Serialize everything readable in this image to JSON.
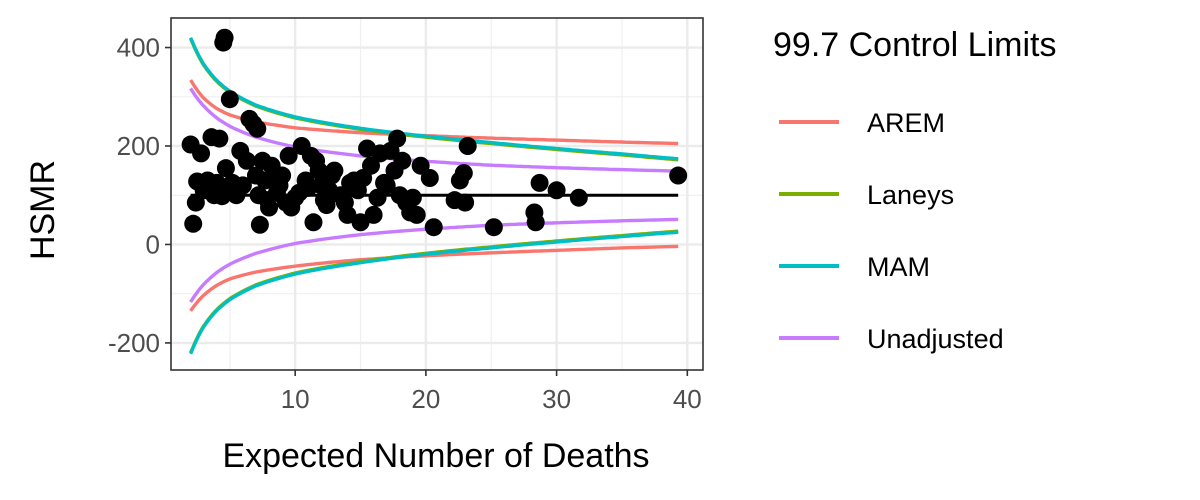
{
  "chart_data": {
    "type": "scatter",
    "title": "",
    "xlabel": "Expected Number of Deaths",
    "ylabel": "HSMR",
    "xlim": [
      0.5,
      41.2
    ],
    "ylim": [
      -255,
      460
    ],
    "x_ticks": [
      10,
      20,
      30,
      40
    ],
    "y_ticks": [
      -200,
      0,
      200,
      400
    ],
    "x_tick_labels": [
      "10",
      "20",
      "30",
      "40"
    ],
    "y_tick_labels": [
      "-200",
      "0",
      "200",
      "400"
    ],
    "grid": true,
    "legend_position": "right",
    "legend_title": "99.7 Control Limits",
    "target_line": {
      "y": 100,
      "x_range": [
        2,
        39.3
      ]
    },
    "limit_curves": [
      {
        "name": "AREM",
        "color": "#F8766D",
        "upper": [
          [
            2,
            334
          ],
          [
            3,
            297
          ],
          [
            4,
            276
          ],
          [
            5,
            263
          ],
          [
            7,
            249
          ],
          [
            10,
            237
          ],
          [
            15,
            227
          ],
          [
            20,
            221
          ],
          [
            25,
            216
          ],
          [
            30,
            212
          ],
          [
            35,
            208
          ],
          [
            39.3,
            205
          ]
        ],
        "lower": [
          [
            2,
            -135
          ],
          [
            3,
            -103
          ],
          [
            4,
            -83
          ],
          [
            5,
            -70
          ],
          [
            7,
            -56
          ],
          [
            10,
            -44
          ],
          [
            15,
            -31
          ],
          [
            20,
            -23
          ],
          [
            25,
            -17
          ],
          [
            30,
            -12
          ],
          [
            35,
            -7
          ],
          [
            39.3,
            -4
          ]
        ]
      },
      {
        "name": "Laneys",
        "color": "#7CAE00",
        "upper": [
          [
            2,
            418
          ],
          [
            3,
            364
          ],
          [
            4,
            331
          ],
          [
            5,
            309
          ],
          [
            7,
            281
          ],
          [
            10,
            257
          ],
          [
            15,
            234
          ],
          [
            20,
            218
          ],
          [
            25,
            205
          ],
          [
            30,
            193
          ],
          [
            35,
            182
          ],
          [
            39.3,
            172
          ]
        ],
        "lower": [
          [
            2,
            -220
          ],
          [
            3,
            -165
          ],
          [
            4,
            -132
          ],
          [
            5,
            -110
          ],
          [
            7,
            -82
          ],
          [
            10,
            -58
          ],
          [
            15,
            -35
          ],
          [
            20,
            -18
          ],
          [
            25,
            -5
          ],
          [
            30,
            7
          ],
          [
            35,
            18
          ],
          [
            39.3,
            27
          ]
        ]
      },
      {
        "name": "MAM",
        "color": "#00BFC4",
        "upper": [
          [
            2,
            420
          ],
          [
            3,
            366
          ],
          [
            4,
            333
          ],
          [
            5,
            311
          ],
          [
            7,
            283
          ],
          [
            10,
            259
          ],
          [
            15,
            236
          ],
          [
            20,
            220
          ],
          [
            25,
            207
          ],
          [
            30,
            195
          ],
          [
            35,
            184
          ],
          [
            39.3,
            174
          ]
        ],
        "lower": [
          [
            2,
            -222
          ],
          [
            3,
            -167
          ],
          [
            4,
            -134
          ],
          [
            5,
            -112
          ],
          [
            7,
            -84
          ],
          [
            10,
            -60
          ],
          [
            15,
            -37
          ],
          [
            20,
            -20
          ],
          [
            25,
            -7
          ],
          [
            30,
            5
          ],
          [
            35,
            16
          ],
          [
            39.3,
            25
          ]
        ]
      },
      {
        "name": "Unadjusted",
        "color": "#C77CFF",
        "upper": [
          [
            2,
            317
          ],
          [
            3,
            281
          ],
          [
            4,
            257
          ],
          [
            5,
            240
          ],
          [
            7,
            218
          ],
          [
            10,
            198
          ],
          [
            15,
            180
          ],
          [
            20,
            169
          ],
          [
            25,
            161
          ],
          [
            30,
            156
          ],
          [
            35,
            152
          ],
          [
            39.3,
            149
          ]
        ],
        "lower": [
          [
            2,
            -117
          ],
          [
            3,
            -81
          ],
          [
            4,
            -57
          ],
          [
            5,
            -40
          ],
          [
            7,
            -18
          ],
          [
            10,
            2
          ],
          [
            15,
            20
          ],
          [
            20,
            31
          ],
          [
            25,
            39
          ],
          [
            30,
            44
          ],
          [
            35,
            48
          ],
          [
            39.3,
            51
          ]
        ]
      }
    ],
    "points": [
      [
        2.0,
        203
      ],
      [
        2.2,
        42
      ],
      [
        2.4,
        85
      ],
      [
        2.5,
        128
      ],
      [
        2.8,
        185
      ],
      [
        3.0,
        110
      ],
      [
        3.3,
        130
      ],
      [
        3.5,
        120
      ],
      [
        3.6,
        218
      ],
      [
        3.8,
        100
      ],
      [
        4.0,
        125
      ],
      [
        4.2,
        215
      ],
      [
        4.3,
        105
      ],
      [
        4.4,
        98
      ],
      [
        4.5,
        410
      ],
      [
        4.6,
        420
      ],
      [
        4.7,
        155
      ],
      [
        4.8,
        110
      ],
      [
        5.0,
        295
      ],
      [
        5.2,
        125
      ],
      [
        5.5,
        100
      ],
      [
        5.8,
        190
      ],
      [
        6.0,
        120
      ],
      [
        6.3,
        170
      ],
      [
        6.5,
        255
      ],
      [
        6.8,
        245
      ],
      [
        7.0,
        140
      ],
      [
        7.1,
        235
      ],
      [
        7.2,
        100
      ],
      [
        7.3,
        40
      ],
      [
        7.5,
        170
      ],
      [
        7.7,
        130
      ],
      [
        7.9,
        90
      ],
      [
        8.0,
        75
      ],
      [
        8.2,
        160
      ],
      [
        8.4,
        140
      ],
      [
        8.6,
        105
      ],
      [
        8.8,
        120
      ],
      [
        9.0,
        140
      ],
      [
        9.3,
        85
      ],
      [
        9.5,
        180
      ],
      [
        9.7,
        75
      ],
      [
        10.0,
        95
      ],
      [
        10.3,
        105
      ],
      [
        10.5,
        200
      ],
      [
        10.8,
        130
      ],
      [
        11.0,
        115
      ],
      [
        11.2,
        180
      ],
      [
        11.4,
        45
      ],
      [
        11.6,
        170
      ],
      [
        11.8,
        150
      ],
      [
        12.0,
        120
      ],
      [
        12.2,
        90
      ],
      [
        12.4,
        80
      ],
      [
        12.6,
        110
      ],
      [
        12.8,
        140
      ],
      [
        13.0,
        150
      ],
      [
        13.5,
        100
      ],
      [
        13.8,
        85
      ],
      [
        14.0,
        60
      ],
      [
        14.2,
        125
      ],
      [
        14.5,
        130
      ],
      [
        14.8,
        110
      ],
      [
        15.0,
        45
      ],
      [
        15.2,
        135
      ],
      [
        15.5,
        195
      ],
      [
        15.8,
        160
      ],
      [
        16.0,
        60
      ],
      [
        16.3,
        95
      ],
      [
        16.5,
        185
      ],
      [
        16.8,
        125
      ],
      [
        17.0,
        120
      ],
      [
        17.3,
        190
      ],
      [
        17.6,
        150
      ],
      [
        17.8,
        215
      ],
      [
        18.0,
        100
      ],
      [
        18.2,
        170
      ],
      [
        18.5,
        85
      ],
      [
        18.8,
        65
      ],
      [
        19.0,
        95
      ],
      [
        19.3,
        60
      ],
      [
        19.6,
        160
      ],
      [
        20.3,
        135
      ],
      [
        20.6,
        35
      ],
      [
        22.2,
        90
      ],
      [
        22.6,
        130
      ],
      [
        22.9,
        145
      ],
      [
        23.0,
        85
      ],
      [
        23.2,
        200
      ],
      [
        25.2,
        35
      ],
      [
        28.3,
        65
      ],
      [
        28.4,
        45
      ],
      [
        28.7,
        125
      ],
      [
        30.0,
        110
      ],
      [
        31.7,
        95
      ],
      [
        39.3,
        140
      ]
    ]
  },
  "legend": {
    "title": "99.7 Control Limits",
    "items": [
      {
        "label": "AREM",
        "color": "#F8766D"
      },
      {
        "label": "Laneys",
        "color": "#7CAE00"
      },
      {
        "label": "MAM",
        "color": "#00BFC4"
      },
      {
        "label": "Unadjusted",
        "color": "#C77CFF"
      }
    ]
  }
}
